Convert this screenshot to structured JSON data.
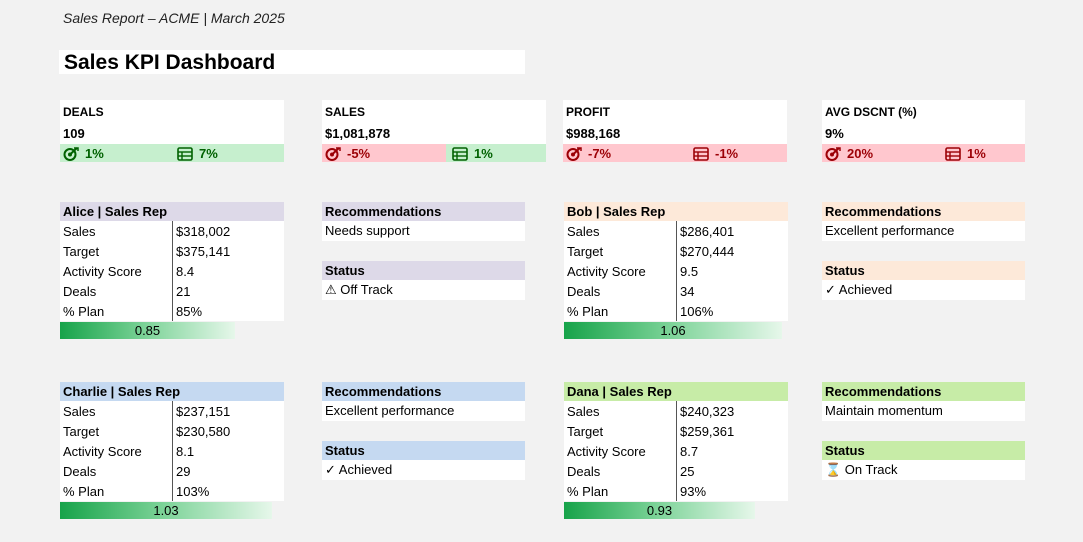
{
  "report_header": "Sales Report – ACME | March 2025",
  "dashboard_title": "Sales KPI Dashboard",
  "colors": {
    "good_fill": "#c6efce",
    "good_text": "#006100",
    "bad_fill": "#ffc7ce",
    "bad_text": "#9c0006",
    "alice_header": "#ddd9e8",
    "bob_header": "#fde9d9",
    "charlie_header": "#c5d9f1",
    "dana_header": "#c7eca7",
    "bar_fill": "#17a34a"
  },
  "kpis": [
    {
      "name": "DEALS",
      "value": "109",
      "target_icon": "target-icon",
      "target_change": "1%",
      "target_status": "good",
      "plan_icon": "table-icon",
      "plan_change": "7%",
      "plan_status": "good"
    },
    {
      "name": "SALES",
      "value": "$1,081,878",
      "target_icon": "target-icon",
      "target_change": "-5%",
      "target_status": "bad",
      "plan_icon": "table-icon",
      "plan_change": "1%",
      "plan_status": "good"
    },
    {
      "name": "PROFIT",
      "value": "$988,168",
      "target_icon": "target-icon",
      "target_change": "-7%",
      "target_status": "bad",
      "plan_icon": "table-icon",
      "plan_change": "-1%",
      "plan_status": "bad"
    },
    {
      "name": "AVG DSCNT (%)",
      "value": "9%",
      "target_icon": "target-icon",
      "target_change": "20%",
      "target_status": "bad",
      "plan_icon": "table-icon",
      "plan_change": "1%",
      "plan_status": "bad"
    }
  ],
  "reps": [
    {
      "header": "Alice | Sales Rep",
      "sales": "$318,002",
      "target": "$375,141",
      "activity": "8.4",
      "deals": "21",
      "plan": "85%",
      "bar_value": "0.85",
      "recommendation": "Needs support",
      "status": "⚠ Off Track",
      "status_icon": "warning-icon"
    },
    {
      "header": "Bob | Sales Rep",
      "sales": "$286,401",
      "target": "$270,444",
      "activity": "9.5",
      "deals": "34",
      "plan": "106%",
      "bar_value": "1.06",
      "recommendation": "Excellent performance",
      "status": "✓ Achieved",
      "status_icon": "checkmark-icon"
    },
    {
      "header": "Charlie | Sales Rep",
      "sales": "$237,151",
      "target": "$230,580",
      "activity": "8.1",
      "deals": "29",
      "plan": "103%",
      "bar_value": "1.03",
      "recommendation": "Excellent performance",
      "status": "✓ Achieved",
      "status_icon": "checkmark-icon"
    },
    {
      "header": "Dana | Sales Rep",
      "sales": "$240,323",
      "target": "$259,361",
      "activity": "8.7",
      "deals": "25",
      "plan": "93%",
      "bar_value": "0.93",
      "recommendation": "Maintain momentum",
      "status": "⌛ On Track",
      "status_icon": "hourglass-icon"
    }
  ],
  "row_labels": {
    "sales": "Sales",
    "target": "Target",
    "activity": "Activity Score",
    "deals": "Deals",
    "plan": "% Plan"
  },
  "labels": {
    "recommendations": "Recommendations",
    "status": "Status"
  }
}
